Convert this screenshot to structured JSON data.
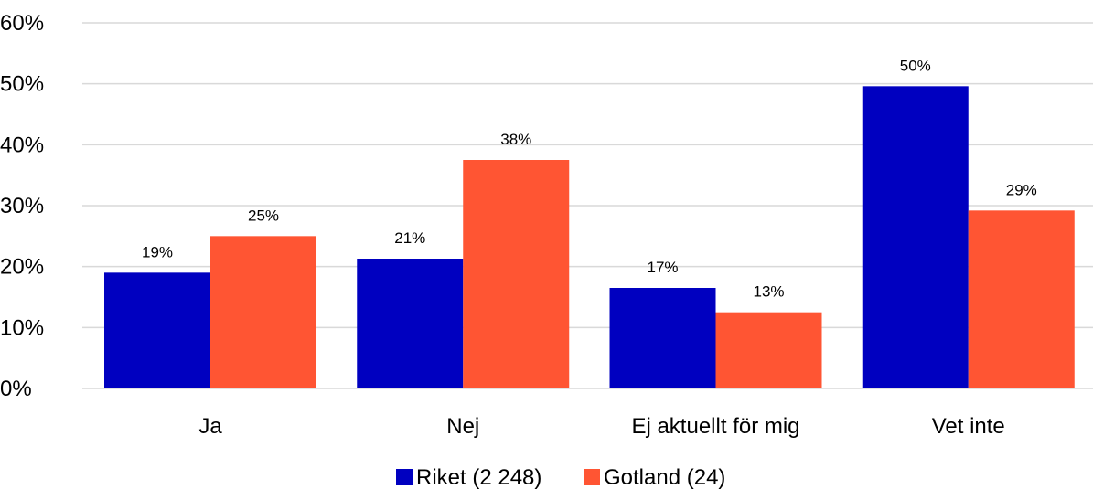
{
  "chart_data": {
    "type": "bar",
    "categories": [
      "Ja",
      "Nej",
      "Ej aktuellt för mig",
      "Vet inte"
    ],
    "series": [
      {
        "name": "Riket (2 248)",
        "color": "#0000C0",
        "values": [
          19,
          21,
          17,
          50
        ],
        "labels": [
          "19%",
          "21%",
          "17%",
          "50%"
        ]
      },
      {
        "name": "Gotland (24)",
        "color": "#FF5533",
        "values": [
          25,
          38,
          13,
          29
        ],
        "labels": [
          "25%",
          "38%",
          "13%",
          "29%"
        ]
      }
    ],
    "bar_values": [
      [
        19.0,
        21.3,
        16.5,
        49.6
      ],
      [
        25.0,
        37.5,
        12.5,
        29.2
      ]
    ],
    "yticks": [
      "0%",
      "10%",
      "20%",
      "30%",
      "40%",
      "50%",
      "60%"
    ],
    "ylim": [
      0,
      60
    ],
    "grid": true,
    "gridline_color": "#D9D9D9",
    "legend_position": "bottom"
  }
}
